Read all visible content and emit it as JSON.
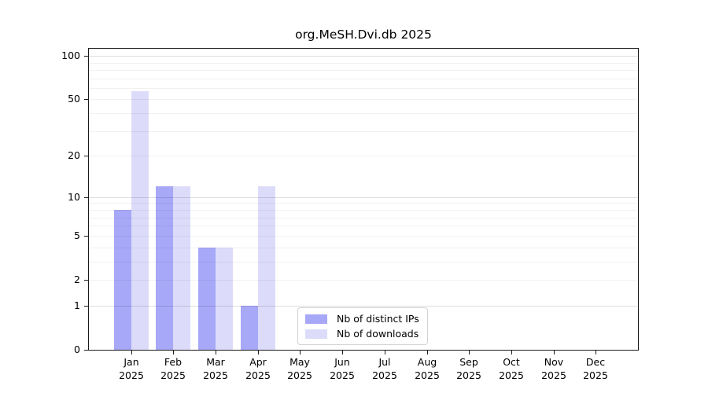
{
  "chart_data": {
    "type": "bar",
    "title": "org.MeSH.Dvi.db 2025",
    "x_tick_months": [
      "Jan",
      "Feb",
      "Mar",
      "Apr",
      "May",
      "Jun",
      "Jul",
      "Aug",
      "Sep",
      "Oct",
      "Nov",
      "Dec"
    ],
    "x_tick_year": "2025",
    "series": [
      {
        "name": "Nb of distinct IPs",
        "color": "#a8a8f8",
        "values": [
          8,
          12,
          4,
          1,
          0,
          0,
          0,
          0,
          0,
          0,
          0,
          0
        ]
      },
      {
        "name": "Nb of downloads",
        "color": "#dcdcfa",
        "values": [
          57,
          12,
          4,
          12,
          0,
          0,
          0,
          0,
          0,
          0,
          0,
          0
        ]
      }
    ],
    "y_axis": {
      "scale": "log1p",
      "tick_values": [
        0,
        1,
        2,
        5,
        10,
        20,
        50,
        100
      ],
      "top_value": 112,
      "major_grid_values": [
        1,
        10,
        100
      ],
      "minor_grid_values": [
        2,
        3,
        4,
        5,
        6,
        7,
        8,
        9,
        20,
        30,
        40,
        50,
        60,
        70,
        80,
        90
      ]
    },
    "grid": {
      "enabled": true,
      "minor_color": "#efefef",
      "major_color": "#d9d9d9"
    },
    "legend": {
      "position": "bottom-center"
    },
    "frame_color": "#1a1a1a"
  }
}
